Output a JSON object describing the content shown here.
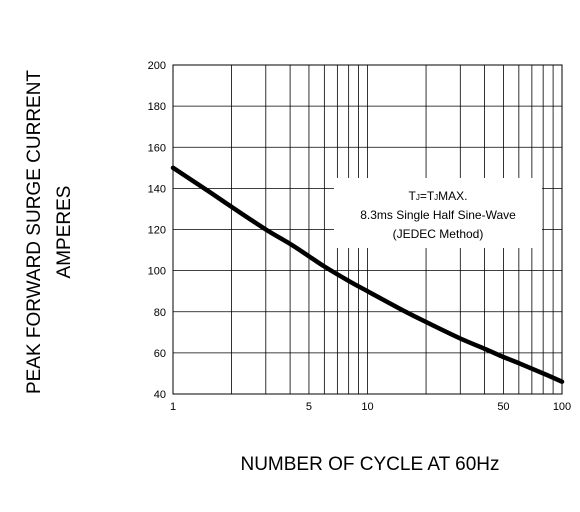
{
  "chart_data": {
    "type": "line",
    "title": "",
    "xlabel": "NUMBER OF CYCLE AT 60Hz",
    "ylabel_lines": [
      "PEAK FORWARD SURGE CURRENT",
      "AMPERES"
    ],
    "x_scale": "log",
    "xlim": [
      1,
      100
    ],
    "ylim": [
      40,
      200
    ],
    "x_tick_labels": [
      {
        "value": 1,
        "label": "1"
      },
      {
        "value": 5,
        "label": "5"
      },
      {
        "value": 10,
        "label": "10"
      },
      {
        "value": 50,
        "label": "50"
      },
      {
        "value": 100,
        "label": "100"
      }
    ],
    "x_gridlines": [
      1,
      2,
      3,
      4,
      5,
      6,
      7,
      8,
      9,
      10,
      20,
      30,
      40,
      50,
      60,
      70,
      80,
      90,
      100
    ],
    "y_ticks": [
      40,
      60,
      80,
      100,
      120,
      140,
      160,
      180,
      200
    ],
    "grid": true,
    "annotation": {
      "line1": {
        "t1": "T",
        "s1": "J",
        "t2": "=T",
        "s2": "J",
        "t3": "MAX."
      },
      "line2": "8.3ms Single Half Sine-Wave",
      "line3": "(JEDEC Method)"
    },
    "series": [
      {
        "x": [
          1,
          1.5,
          2,
          3,
          4,
          5,
          6,
          8,
          10,
          15,
          20,
          30,
          40,
          50,
          60,
          80,
          100
        ],
        "y": [
          150,
          139,
          131,
          120,
          113,
          107,
          102,
          95,
          90,
          81,
          75,
          67,
          62,
          58,
          55,
          50,
          46
        ]
      }
    ]
  }
}
